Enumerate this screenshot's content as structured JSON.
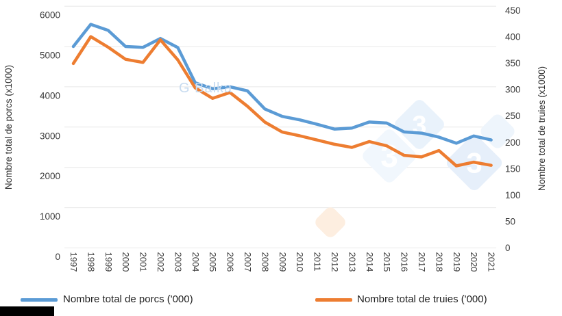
{
  "chart_data": {
    "type": "line",
    "title": "",
    "x": [
      1997,
      1998,
      1999,
      2000,
      2001,
      2002,
      2003,
      2004,
      2005,
      2006,
      2007,
      2008,
      2009,
      2010,
      2011,
      2012,
      2013,
      2014,
      2015,
      2016,
      2017,
      2018,
      2019,
      2020,
      2021
    ],
    "series": [
      {
        "name": "Nombre total de porcs ('000)",
        "axis": "left",
        "color": "#5B9BD5",
        "values": [
          5000,
          5550,
          5400,
          5000,
          4980,
          5200,
          4975,
          4100,
          3950,
          4000,
          3900,
          3450,
          3265,
          3180,
          3070,
          2950,
          2975,
          3125,
          3100,
          2880,
          2850,
          2750,
          2600,
          2780,
          2680
        ]
      },
      {
        "name": "Nombre total de truies ('000)",
        "axis": "right",
        "color": "#ED7D31",
        "values": [
          349,
          400,
          380,
          357,
          351,
          394,
          356,
          303,
          283,
          294,
          268,
          238,
          219,
          212,
          204,
          196,
          190,
          201,
          193,
          175,
          172,
          184,
          155,
          162,
          156
        ]
      }
    ],
    "left_axis": {
      "label": "Nombre total de porcs (x1000)",
      "min": 0,
      "max": 6000,
      "ticks": [
        0,
        1000,
        2000,
        3000,
        4000,
        5000,
        6000
      ]
    },
    "right_axis": {
      "label": "Nombre total de truies (x1000)",
      "min": 0,
      "max": 450,
      "ticks": [
        0,
        50,
        100,
        150,
        200,
        250,
        300,
        350,
        400,
        450
      ]
    },
    "grid": "horizontal-light",
    "legend_position": "bottom"
  },
  "legend": {
    "items": [
      {
        "label": "Nombre total de porcs ('000)",
        "color": "#5B9BD5"
      },
      {
        "label": "Nombre total de truies ('000)",
        "color": "#ED7D31"
      }
    ]
  },
  "watermark": {
    "text": "G Balka",
    "digit": "3"
  },
  "colors": {
    "series_blue": "#5B9BD5",
    "series_orange": "#ED7D31",
    "gridline": "#e8e8e8",
    "tick_text": "#3a3a3a",
    "watermark_blue": "#e9f2fb",
    "watermark_orange": "#fdeee0"
  }
}
